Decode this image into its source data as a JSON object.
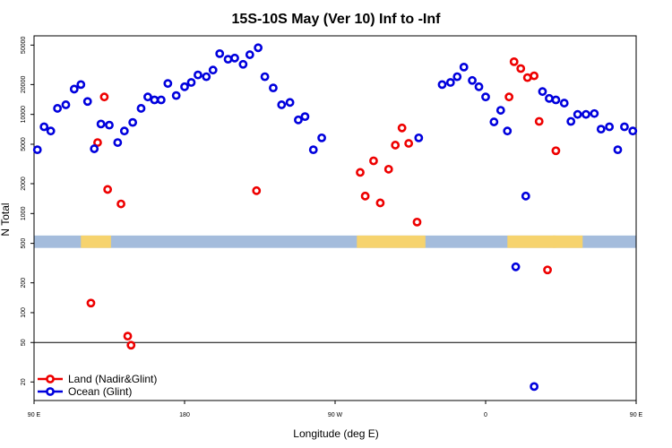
{
  "chart_data": {
    "type": "scatter",
    "title": "15S-10S May (Ver 10)   Inf to -Inf",
    "xlabel": "Longitude (deg E)",
    "ylabel": "N Total",
    "x_range": [
      90,
      450
    ],
    "y_range": [
      13,
      62000
    ],
    "y_scale": "log",
    "x_ticks": [
      {
        "value": 90,
        "label": "90 E"
      },
      {
        "value": 180,
        "label": "180"
      },
      {
        "value": 270,
        "label": "90 W"
      },
      {
        "value": 360,
        "label": "0"
      },
      {
        "value": 450,
        "label": "90 E"
      },
      {
        "value": 540,
        "label": "180"
      }
    ],
    "y_ticks": [
      20,
      50,
      100,
      200,
      500,
      1000,
      2000,
      5000,
      10000,
      20000,
      50000
    ],
    "reference_line": 50,
    "land_band": {
      "lower": 450,
      "upper": 600
    },
    "land_segments": [
      [
        118,
        136
      ],
      [
        283,
        324
      ],
      [
        373,
        402
      ],
      [
        400,
        418
      ]
    ],
    "legend": {
      "position": "bottom-left"
    },
    "colors": {
      "land": "#ee0000",
      "ocean": "#0000dd",
      "band_ocean": "#a4bcdc",
      "band_land": "#f6d36e"
    },
    "series": [
      {
        "name": "Land (Nadir&Glint)",
        "color": "#ee0000",
        "points": [
          [
            124,
            125
          ],
          [
            128,
            5200
          ],
          [
            132,
            15000
          ],
          [
            134,
            1750
          ],
          [
            142,
            1250
          ],
          [
            146,
            58
          ],
          [
            148,
            47
          ],
          [
            223,
            1700
          ],
          [
            285,
            2600
          ],
          [
            288,
            1500
          ],
          [
            293,
            3400
          ],
          [
            297,
            1280
          ],
          [
            302,
            2800
          ],
          [
            306,
            4900
          ],
          [
            310,
            7300
          ],
          [
            314,
            5100
          ],
          [
            319,
            820
          ],
          [
            374,
            15000
          ],
          [
            377,
            34000
          ],
          [
            381,
            29000
          ],
          [
            385,
            23500
          ],
          [
            389,
            24500
          ],
          [
            392,
            8500
          ],
          [
            397,
            270
          ],
          [
            402,
            4300
          ]
        ]
      },
      {
        "name": "Ocean (Glint)",
        "color": "#0000dd",
        "points": [
          [
            92,
            4400
          ],
          [
            96,
            7500
          ],
          [
            100,
            6800
          ],
          [
            104,
            11500
          ],
          [
            109,
            12500
          ],
          [
            114,
            18000
          ],
          [
            118,
            20000
          ],
          [
            122,
            13500
          ],
          [
            126,
            4500
          ],
          [
            130,
            8000
          ],
          [
            135,
            7800
          ],
          [
            140,
            5200
          ],
          [
            144,
            6800
          ],
          [
            149,
            8300
          ],
          [
            154,
            11500
          ],
          [
            158,
            15000
          ],
          [
            162,
            14000
          ],
          [
            166,
            14000
          ],
          [
            170,
            20500
          ],
          [
            175,
            15500
          ],
          [
            180,
            19000
          ],
          [
            184,
            21000
          ],
          [
            188,
            25000
          ],
          [
            193,
            24000
          ],
          [
            197,
            28000
          ],
          [
            201,
            41000
          ],
          [
            206,
            36000
          ],
          [
            210,
            37000
          ],
          [
            215,
            32000
          ],
          [
            219,
            40000
          ],
          [
            224,
            47000
          ],
          [
            228,
            24000
          ],
          [
            233,
            18500
          ],
          [
            238,
            12500
          ],
          [
            243,
            13200
          ],
          [
            248,
            8800
          ],
          [
            252,
            9500
          ],
          [
            257,
            4400
          ],
          [
            262,
            5800
          ],
          [
            320,
            5800
          ],
          [
            334,
            20000
          ],
          [
            339,
            21000
          ],
          [
            343,
            24000
          ],
          [
            347,
            30000
          ],
          [
            352,
            22000
          ],
          [
            356,
            19000
          ],
          [
            360,
            15000
          ],
          [
            365,
            8400
          ],
          [
            369,
            11000
          ],
          [
            373,
            6800
          ],
          [
            378,
            290
          ],
          [
            384,
            1500
          ],
          [
            389,
            18
          ],
          [
            394,
            17000
          ],
          [
            398,
            14500
          ],
          [
            402,
            14000
          ],
          [
            407,
            13000
          ],
          [
            411,
            8500
          ],
          [
            415,
            10000
          ],
          [
            420,
            10000
          ],
          [
            425,
            10200
          ],
          [
            429,
            7100
          ],
          [
            434,
            7500
          ],
          [
            439,
            4400
          ],
          [
            443,
            7500
          ],
          [
            448,
            6800
          ]
        ]
      }
    ]
  }
}
